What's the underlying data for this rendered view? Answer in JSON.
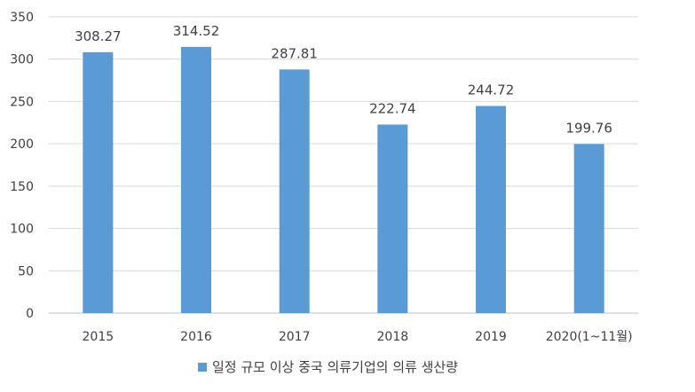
{
  "chart_data": {
    "type": "bar",
    "categories": [
      "2015",
      "2016",
      "2017",
      "2018",
      "2019",
      "2020(1~11월)"
    ],
    "series": [
      {
        "name": "일정 규모 이상 중국 의류기업의 의류 생산량",
        "values": [
          308.27,
          314.52,
          287.81,
          222.74,
          244.72,
          199.76
        ],
        "color": "#5B9BD5"
      }
    ],
    "data_labels": [
      "308.27",
      "314.52",
      "287.81",
      "222.74",
      "244.72",
      "199.76"
    ],
    "ylim": [
      0,
      350
    ],
    "yticks": [
      0,
      50,
      100,
      150,
      200,
      250,
      300,
      350
    ],
    "grid": true,
    "gridline_color": "#D9D9D9",
    "legend_position": "bottom"
  }
}
